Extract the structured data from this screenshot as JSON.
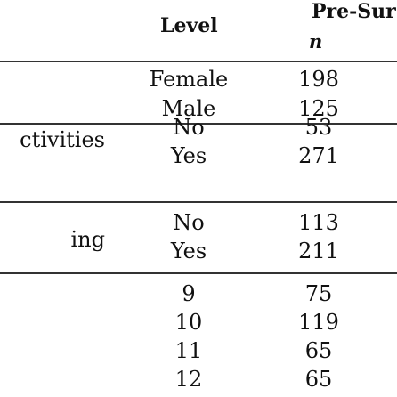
{
  "header": {
    "level_label": "Level",
    "group_label": "Pre-Sur",
    "n_label": "n"
  },
  "rows": [
    {
      "variable": "",
      "level": "Female",
      "n": "198"
    },
    {
      "variable": "",
      "level": "Male",
      "n": "125"
    },
    {
      "variable": "ctivities",
      "level": "No",
      "n": "53"
    },
    {
      "variable": "",
      "level": "Yes",
      "n": "271"
    },
    {
      "variable": "ing",
      "level": "No",
      "n": "113"
    },
    {
      "variable": "",
      "level": "Yes",
      "n": "211"
    },
    {
      "variable": "",
      "level": "9",
      "n": "75"
    },
    {
      "variable": "",
      "level": "10",
      "n": "119"
    },
    {
      "variable": "",
      "level": "11",
      "n": "65"
    },
    {
      "variable": "",
      "level": "12",
      "n": "65"
    }
  ]
}
